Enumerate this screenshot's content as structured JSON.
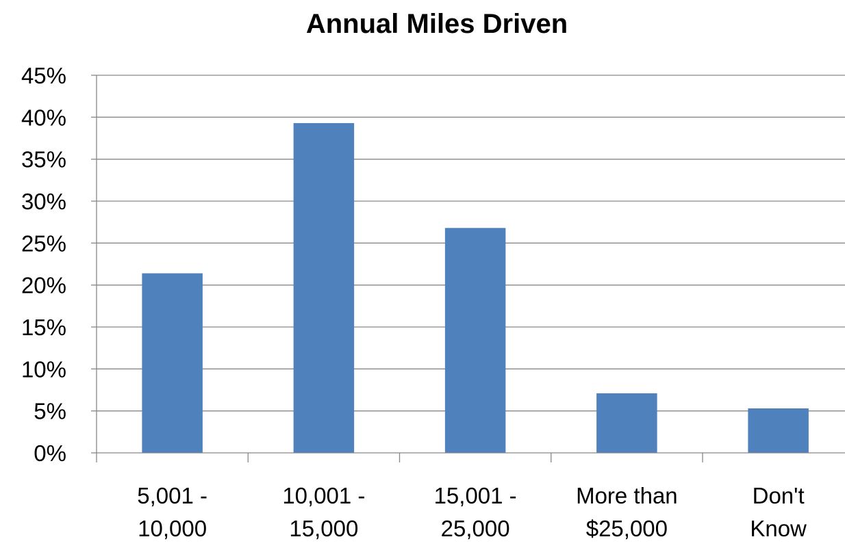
{
  "chart_data": {
    "type": "bar",
    "title": "Annual Miles Driven",
    "categories": [
      [
        "5,001 -",
        "10,000"
      ],
      [
        "10,001 -",
        "15,000"
      ],
      [
        "15,001 -",
        "25,000"
      ],
      [
        "More than",
        "$25,000"
      ],
      [
        "Don't",
        "Know"
      ]
    ],
    "values": [
      21.4,
      39.3,
      26.8,
      7.1,
      5.3
    ],
    "ylim": [
      0,
      45
    ],
    "yticks": [
      "0%",
      "5%",
      "10%",
      "15%",
      "20%",
      "25%",
      "30%",
      "35%",
      "40%",
      "45%"
    ],
    "grid": true,
    "legend": "none"
  },
  "colors": {
    "bar": "#4f81bd"
  }
}
